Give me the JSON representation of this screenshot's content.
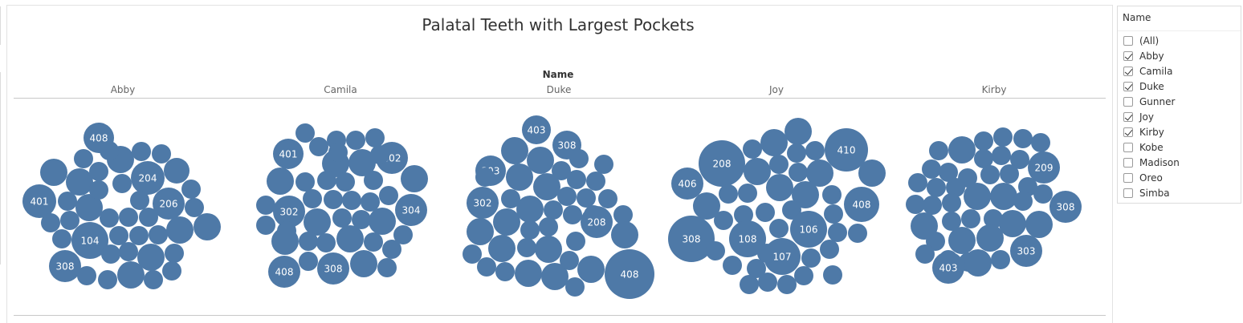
{
  "chart_data": {
    "type": "packed-bubble",
    "title": "Palatal Teeth with Largest Pockets",
    "facet_header": "Name",
    "facets": [
      "Abby",
      "Camila",
      "Duke",
      "Joy",
      "Kirby"
    ],
    "bubble_color": "#4e79a7",
    "label_color": "#ffffff",
    "labeled_bubbles": {
      "Abby": [
        "408",
        "204",
        "401",
        "206",
        "104",
        "308"
      ],
      "Camila": [
        "401",
        "402",
        "302",
        "304",
        "408",
        "308"
      ],
      "Duke": [
        "403",
        "308",
        "303",
        "302",
        "208",
        "408"
      ],
      "Joy": [
        "208",
        "410",
        "406",
        "408",
        "106",
        "308",
        "108",
        "107"
      ],
      "Kirby": [
        "209",
        "308",
        "303",
        "403"
      ]
    }
  },
  "filter": {
    "title": "Name",
    "options": [
      {
        "label": "(All)",
        "checked": false
      },
      {
        "label": "Abby",
        "checked": true
      },
      {
        "label": "Camila",
        "checked": true
      },
      {
        "label": "Duke",
        "checked": true
      },
      {
        "label": "Gunner",
        "checked": false
      },
      {
        "label": "Joy",
        "checked": true
      },
      {
        "label": "Kirby",
        "checked": true
      },
      {
        "label": "Kobe",
        "checked": false
      },
      {
        "label": "Madison",
        "checked": false
      },
      {
        "label": "Oreo",
        "checked": false
      },
      {
        "label": "Simba",
        "checked": false
      }
    ]
  }
}
